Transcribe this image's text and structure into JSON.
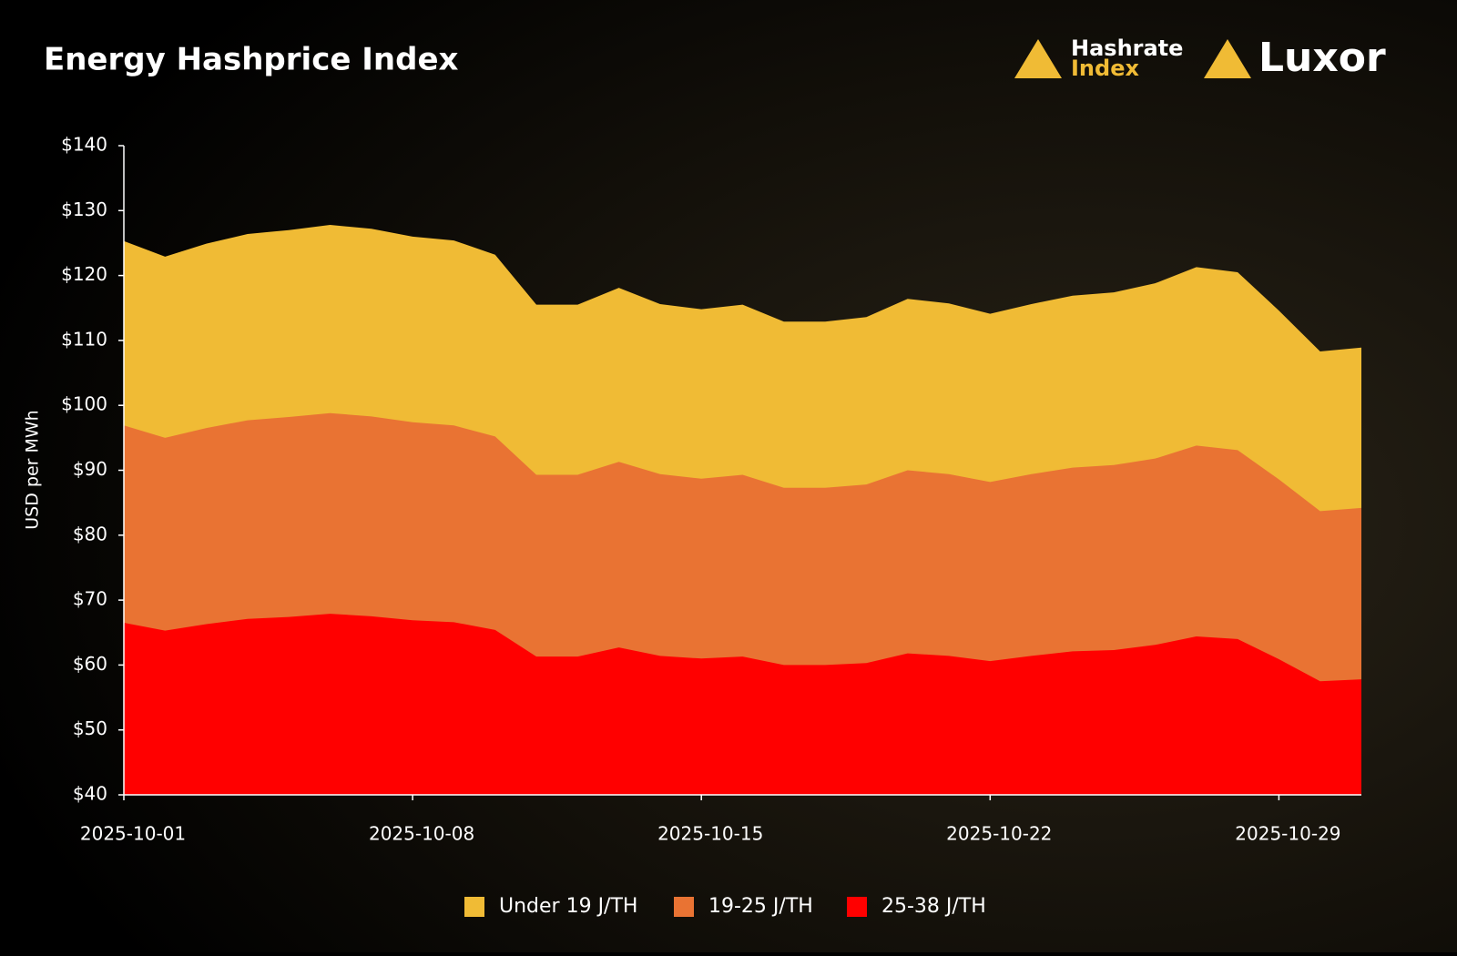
{
  "chart_data": {
    "type": "area",
    "title": "Energy Hashprice Index",
    "y_label": "USD per MWh",
    "x": [
      "2025-10-01",
      "2025-10-02",
      "2025-10-03",
      "2025-10-04",
      "2025-10-05",
      "2025-10-06",
      "2025-10-07",
      "2025-10-08",
      "2025-10-09",
      "2025-10-10",
      "2025-10-11",
      "2025-10-12",
      "2025-10-13",
      "2025-10-14",
      "2025-10-15",
      "2025-10-16",
      "2025-10-17",
      "2025-10-18",
      "2025-10-19",
      "2025-10-20",
      "2025-10-21",
      "2025-10-22",
      "2025-10-23",
      "2025-10-24",
      "2025-10-25",
      "2025-10-26",
      "2025-10-27",
      "2025-10-28",
      "2025-10-29",
      "2025-10-30",
      "2025-10-31"
    ],
    "xticks": [
      "2025-10-01",
      "2025-10-08",
      "2025-10-15",
      "2025-10-22",
      "2025-10-29"
    ],
    "ylim": [
      40,
      140
    ],
    "yticks": [
      {
        "value": 40,
        "label": "$40"
      },
      {
        "value": 50,
        "label": "$50"
      },
      {
        "value": 60,
        "label": "$60"
      },
      {
        "value": 70,
        "label": "$70"
      },
      {
        "value": 80,
        "label": "$80"
      },
      {
        "value": 90,
        "label": "$90"
      },
      {
        "value": 100,
        "label": "$100"
      },
      {
        "value": 110,
        "label": "$110"
      },
      {
        "value": 120,
        "label": "$120"
      },
      {
        "value": 130,
        "label": "$130"
      },
      {
        "value": 140,
        "label": "$140"
      }
    ],
    "legend": "bottom",
    "series": [
      {
        "name": "Under 19 J/TH",
        "color": "#f0bb35",
        "values": [
          125.3,
          122.9,
          124.9,
          126.4,
          127.0,
          127.8,
          127.2,
          126.0,
          125.4,
          123.2,
          115.5,
          115.5,
          118.1,
          115.6,
          114.8,
          115.5,
          112.9,
          112.9,
          113.6,
          116.4,
          115.7,
          114.1,
          115.6,
          116.9,
          117.4,
          118.8,
          121.3,
          120.5,
          114.6,
          108.3,
          108.9
        ]
      },
      {
        "name": "19-25 J/TH",
        "color": "#e97333",
        "values": [
          96.9,
          95.0,
          96.5,
          97.7,
          98.2,
          98.8,
          98.3,
          97.4,
          96.9,
          95.2,
          89.3,
          89.3,
          91.3,
          89.4,
          88.7,
          89.3,
          87.3,
          87.3,
          87.8,
          90.0,
          89.4,
          88.2,
          89.4,
          90.4,
          90.8,
          91.8,
          93.8,
          93.1,
          88.6,
          83.7,
          84.2
        ]
      },
      {
        "name": "25-38 J/TH",
        "color": "#ff0000",
        "values": [
          66.5,
          65.3,
          66.3,
          67.1,
          67.4,
          67.9,
          67.5,
          66.9,
          66.6,
          65.4,
          61.3,
          61.3,
          62.7,
          61.4,
          61.0,
          61.3,
          60.0,
          60.0,
          60.3,
          61.8,
          61.4,
          60.6,
          61.4,
          62.1,
          62.3,
          63.1,
          64.4,
          64.0,
          60.9,
          57.5,
          57.8
        ]
      }
    ]
  },
  "logos": {
    "hashrate_top": "Hashrate",
    "hashrate_bottom": "Index",
    "luxor": "Luxor"
  }
}
